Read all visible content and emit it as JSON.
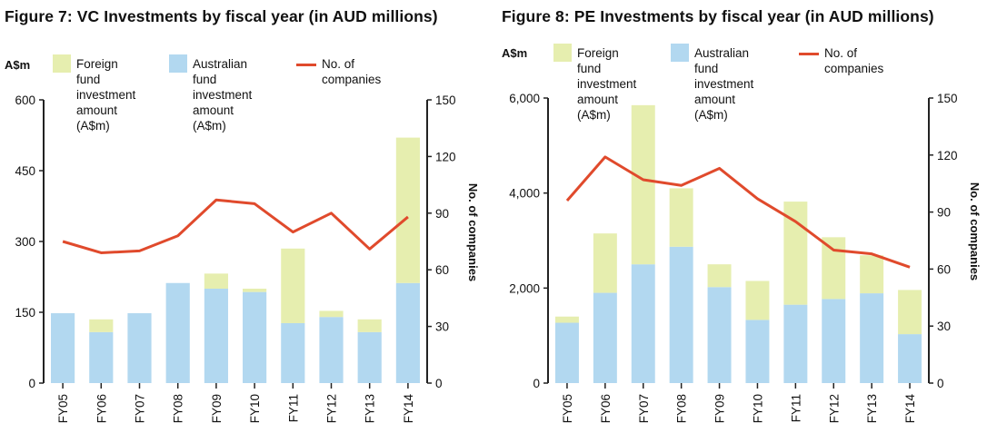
{
  "colors": {
    "foreign": "#e6eeaf",
    "australian": "#b2d8f0",
    "line": "#e04a2c",
    "axis": "#222222"
  },
  "chart_data": [
    {
      "type": "bar",
      "title": "Figure 7: VC Investments by fiscal year (in AUD millions)",
      "unit_label": "A$m",
      "ylabel_right": "No. of companies",
      "categories": [
        "FY05",
        "FY06",
        "FY07",
        "FY08",
        "FY09",
        "FY10",
        "FY11",
        "FY12",
        "FY13",
        "FY14"
      ],
      "stacked": true,
      "ylim": [
        0,
        600
      ],
      "yticks": [
        "0",
        "150",
        "300",
        "450",
        "600"
      ],
      "y2lim": [
        0,
        150
      ],
      "y2ticks": [
        "0",
        "30",
        "60",
        "90",
        "120",
        "150"
      ],
      "series": [
        {
          "name": "Australian fund\ninvestment\namount (A$m)",
          "kind": "bar",
          "color_key": "australian",
          "values": [
            148,
            108,
            148,
            212,
            200,
            193,
            127,
            140,
            108,
            212
          ]
        },
        {
          "name": "Foreign fund\ninvestment\namount (A$m)",
          "kind": "bar",
          "color_key": "foreign",
          "values": [
            0,
            27,
            0,
            0,
            32,
            7,
            158,
            13,
            27,
            308
          ]
        },
        {
          "name": "No. of companies",
          "kind": "line",
          "axis": "right",
          "color_key": "line",
          "values": [
            75,
            69,
            70,
            78,
            97,
            95,
            80,
            90,
            71,
            88
          ]
        }
      ],
      "legend_order": [
        1,
        0,
        2
      ]
    },
    {
      "type": "bar",
      "title": "Figure 8: PE Investments by fiscal year (in AUD millions)",
      "unit_label": "A$m",
      "ylabel_right": "No. of companies",
      "categories": [
        "FY05",
        "FY06",
        "FY07",
        "FY08",
        "FY09",
        "FY10",
        "FY11",
        "FY12",
        "FY13",
        "FY14"
      ],
      "stacked": true,
      "ylim": [
        0,
        6000
      ],
      "yticks": [
        "0",
        "2,000",
        "4,000",
        "6,000"
      ],
      "yticks_values": [
        0,
        2000,
        4000,
        6000
      ],
      "y2lim": [
        0,
        150
      ],
      "y2ticks": [
        "0",
        "30",
        "60",
        "90",
        "120",
        "150"
      ],
      "series": [
        {
          "name": "Australian fund\ninvestment\namount (A$m)",
          "kind": "bar",
          "color_key": "australian",
          "values": [
            1270,
            1900,
            2500,
            2870,
            2020,
            1330,
            1650,
            1770,
            1890,
            1030
          ]
        },
        {
          "name": "Foreign fund\ninvestment\namount (A$m)",
          "kind": "bar",
          "color_key": "foreign",
          "values": [
            130,
            1250,
            3350,
            1230,
            480,
            820,
            2170,
            1300,
            800,
            930
          ]
        },
        {
          "name": "No. of companies",
          "kind": "line",
          "axis": "right",
          "color_key": "line",
          "values": [
            96,
            119,
            107,
            104,
            113,
            97,
            85,
            70,
            68,
            61
          ]
        }
      ],
      "legend_order": [
        1,
        0,
        2
      ]
    }
  ]
}
